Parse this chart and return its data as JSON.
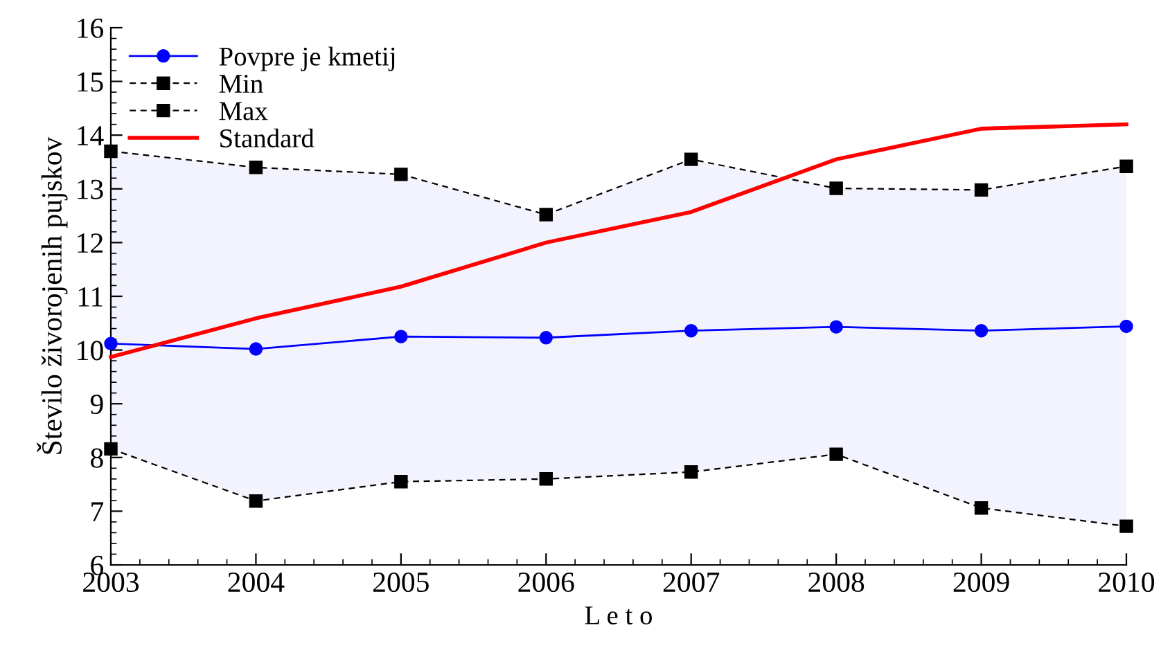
{
  "chart_data": {
    "type": "line",
    "xlabel": "L e t o",
    "ylabel": "Število živorojenih pujskov",
    "x": [
      2003,
      2004,
      2005,
      2006,
      2007,
      2008,
      2009,
      2010
    ],
    "xlim": [
      2003,
      2010
    ],
    "xticks": [
      2003,
      2004,
      2005,
      2006,
      2007,
      2008,
      2009,
      2010
    ],
    "ylim": [
      6,
      16
    ],
    "yticks": [
      6,
      7,
      8,
      9,
      10,
      11,
      12,
      13,
      14,
      15,
      16
    ],
    "grid": false,
    "legend": "top left",
    "series": [
      {
        "name": "Povpre je kmetij",
        "color": "#0000ff",
        "marker": "circle",
        "line_style": "solid",
        "values": [
          10.12,
          10.02,
          10.25,
          10.23,
          10.36,
          10.43,
          10.36,
          10.44
        ],
        "lower": [
          8.16,
          7.19,
          7.55,
          7.6,
          7.73,
          8.06,
          7.06,
          6.72
        ],
        "upper": [
          13.7,
          13.4,
          13.27,
          12.52,
          13.55,
          13.01,
          12.98,
          13.42
        ]
      },
      {
        "name": "Min",
        "color": "#000000",
        "marker": "square",
        "line_style": "dashed",
        "values": [
          8.16,
          7.19,
          7.55,
          7.6,
          7.73,
          8.06,
          7.06,
          6.72
        ]
      },
      {
        "name": "Max",
        "color": "#000000",
        "marker": "square",
        "line_style": "dashed",
        "values": [
          13.7,
          13.4,
          13.27,
          12.52,
          13.55,
          13.01,
          12.98,
          13.42
        ]
      },
      {
        "name": "Standard",
        "color": "#ff0000",
        "marker": "none",
        "line_style": "solid",
        "values": [
          9.87,
          10.59,
          11.18,
          12.0,
          12.57,
          13.55,
          14.12,
          14.2
        ]
      }
    ]
  }
}
